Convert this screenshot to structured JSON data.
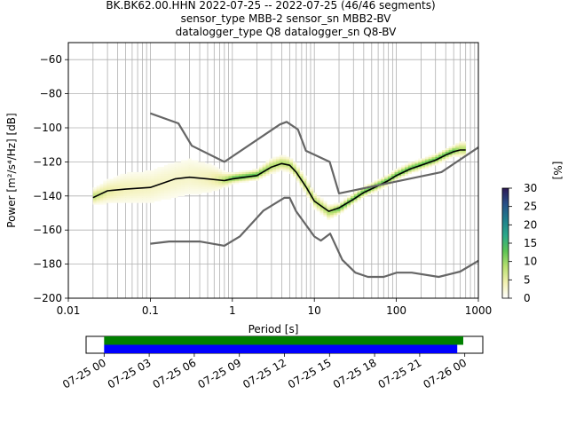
{
  "chart_data": [
    {
      "type": "heatmap",
      "title_lines": [
        "BK.BK62.00.HHN   2022-07-25 -- 2022-07-25  (46/46 segments)",
        "sensor_type MBB-2 sensor_sn MBB2-BV",
        "datalogger_type Q8 datalogger_sn Q8-BV"
      ],
      "xlabel": "Period [s]",
      "ylabel": "Power [m²/s⁴/Hz] [dB]",
      "x_scale": "log",
      "xlim": [
        0.01,
        1000
      ],
      "ylim": [
        -200,
        -50
      ],
      "x_ticks": [
        0.01,
        0.1,
        1,
        10,
        100,
        1000
      ],
      "x_tick_labels": [
        "0.01",
        "0.1",
        "1",
        "10",
        "100",
        "1000"
      ],
      "y_ticks": [
        -200,
        -180,
        -160,
        -140,
        -120,
        -100,
        -80,
        -60
      ],
      "y_tick_labels": [
        "−200",
        "−180",
        "−160",
        "−140",
        "−120",
        "−100",
        "−80",
        "−60"
      ],
      "grid": true,
      "colorbar": {
        "label": "[%]",
        "min": 0,
        "max": 30,
        "ticks": [
          0,
          5,
          10,
          15,
          20,
          25,
          30
        ],
        "tick_labels": [
          "0",
          "5",
          "10",
          "15",
          "20",
          "25",
          "30"
        ],
        "colors": [
          "#ffffff",
          "#f2f0b0",
          "#b8e070",
          "#5cc454",
          "#2aa88a",
          "#1f7e8c",
          "#274f88",
          "#2d1a55"
        ]
      },
      "psd_band": {
        "period": [
          0.02,
          0.03,
          0.05,
          0.1,
          0.2,
          0.3,
          0.5,
          0.8,
          1,
          2,
          3,
          4,
          5,
          6,
          8,
          10,
          15,
          20,
          30,
          40,
          60,
          80,
          100,
          150,
          200,
          300,
          400,
          500,
          600,
          700
        ],
        "mean": [
          -141,
          -138,
          -136,
          -135,
          -131,
          -129,
          -130,
          -131,
          -130,
          -128,
          -123,
          -121,
          -122,
          -126,
          -135,
          -143,
          -150,
          -148,
          -142,
          -138,
          -134,
          -131,
          -128,
          -124,
          -122,
          -119,
          -116,
          -114,
          -113,
          -113
        ],
        "spread_db": [
          3,
          5,
          7,
          8,
          9,
          9,
          7,
          3,
          2,
          2,
          3,
          3,
          3,
          3,
          3,
          3,
          3,
          2,
          2,
          2,
          2,
          2,
          2,
          2,
          2,
          2,
          2,
          2,
          3,
          3
        ]
      },
      "series": [
        {
          "role": "mean",
          "color": "#000000",
          "period": [
            0.02,
            0.03,
            0.05,
            0.1,
            0.2,
            0.3,
            0.5,
            0.8,
            1,
            2,
            3,
            4,
            5,
            6,
            8,
            10,
            15,
            20,
            30,
            40,
            60,
            80,
            100,
            150,
            200,
            300,
            400,
            500,
            600,
            700
          ],
          "power": [
            -141,
            -137,
            -136,
            -135,
            -130,
            -129,
            -130,
            -131,
            -130,
            -128,
            -123,
            -121,
            -122,
            -126,
            -135,
            -143,
            -149,
            -147,
            -142,
            -138,
            -134,
            -131,
            -128,
            -124,
            -122,
            -119,
            -116,
            -114,
            -113,
            -113
          ]
        },
        {
          "role": "high-noise-model",
          "color": "#666666",
          "period": [
            0.1,
            0.22,
            0.32,
            0.8,
            3.8,
            4.6,
            6.3,
            7.9,
            15.4,
            20,
            354.8,
            1000
          ],
          "power": [
            -91.5,
            -97.4,
            -110.5,
            -120,
            -98,
            -96.5,
            -101,
            -113.5,
            -120,
            -138.5,
            -126,
            -111.5
          ]
        },
        {
          "role": "low-noise-model",
          "color": "#666666",
          "period": [
            0.1,
            0.17,
            0.4,
            0.8,
            1.24,
            2.4,
            4.3,
            5,
            6,
            10,
            12,
            15.6,
            21.9,
            31.6,
            45,
            70,
            101,
            154,
            328,
            600,
            1000
          ],
          "power": [
            -168,
            -166.7,
            -166.7,
            -169.2,
            -163.7,
            -148.6,
            -141.1,
            -141.1,
            -149,
            -163.8,
            -166.2,
            -162.1,
            -177.5,
            -185,
            -187.5,
            -187.5,
            -185,
            -185,
            -187.5,
            -184.4,
            -178
          ]
        }
      ]
    },
    {
      "type": "timeline",
      "x_tick_labels": [
        "07-25 00",
        "07-25 03",
        "07-25 06",
        "07-25 09",
        "07-25 12",
        "07-25 15",
        "07-25 18",
        "07-25 21",
        "07-26 00"
      ],
      "x_ticks_hours": [
        0,
        3,
        6,
        9,
        12,
        15,
        18,
        21,
        24
      ],
      "xlim_hours": [
        -1.2,
        25.2
      ],
      "bars": [
        {
          "color": "#008000",
          "start_hour": 0,
          "end_hour": 23.9
        },
        {
          "color": "#0000ff",
          "start_hour": 0,
          "end_hour": 23.5
        }
      ]
    }
  ]
}
